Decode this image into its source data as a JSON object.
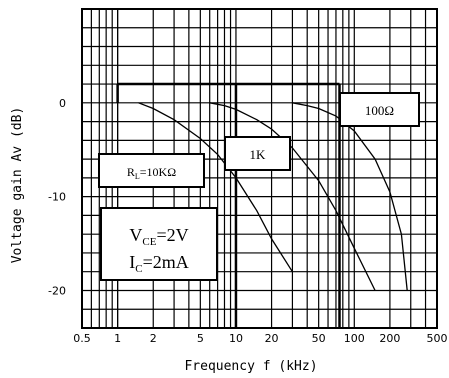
{
  "chart_data": {
    "type": "line",
    "xlabel": "Frequency f (kHz)",
    "ylabel": "Voltage gain Av (dB)",
    "x_scale": "log",
    "xlim": [
      0.5,
      500
    ],
    "ylim": [
      -24,
      10
    ],
    "grid": true,
    "x_ticks": [
      {
        "value": 0.5,
        "label": "0.5"
      },
      {
        "value": 1,
        "label": "1"
      },
      {
        "value": 2,
        "label": "2"
      },
      {
        "value": 5,
        "label": "5"
      },
      {
        "value": 10,
        "label": "10"
      },
      {
        "value": 20,
        "label": "20"
      },
      {
        "value": 50,
        "label": "50"
      },
      {
        "value": 100,
        "label": "100"
      },
      {
        "value": 200,
        "label": "200"
      },
      {
        "value": 500,
        "label": "500"
      }
    ],
    "y_ticks": [
      {
        "value": 0,
        "label": "0"
      },
      {
        "value": -10,
        "label": "-10"
      },
      {
        "value": -20,
        "label": "-20"
      }
    ],
    "reference_line": {
      "y": 2,
      "x_start": 1,
      "x_end": 75
    },
    "series": [
      {
        "name": "RL=10KΩ",
        "x": [
          1.5,
          2,
          3,
          5,
          7,
          10,
          15,
          20,
          30
        ],
        "y": [
          0,
          -0.6,
          -1.8,
          -3.8,
          -5.5,
          -8,
          -11.5,
          -14.5,
          -18
        ]
      },
      {
        "name": "1K",
        "x": [
          6,
          8,
          10,
          15,
          20,
          30,
          50,
          70,
          100,
          150
        ],
        "y": [
          0,
          -0.3,
          -0.7,
          -1.8,
          -2.8,
          -4.8,
          -8.3,
          -11.5,
          -15.5,
          -20
        ]
      },
      {
        "name": "100Ω",
        "x": [
          30,
          40,
          50,
          70,
          100,
          150,
          200,
          250,
          280
        ],
        "y": [
          0,
          -0.3,
          -0.6,
          -1.4,
          -3,
          -6,
          -9.5,
          -14,
          -20
        ]
      }
    ],
    "annotations": [
      {
        "text": "100Ω"
      },
      {
        "text": "1K"
      },
      {
        "text": "RL=10KΩ",
        "main": "R",
        "sub": "L",
        "rest": "=10KΩ"
      },
      {
        "lines": [
          {
            "main": "V",
            "sub": "CE",
            "rest": "=2V"
          },
          {
            "main": "I",
            "sub": "C",
            "rest": "=2mA"
          }
        ]
      }
    ]
  }
}
